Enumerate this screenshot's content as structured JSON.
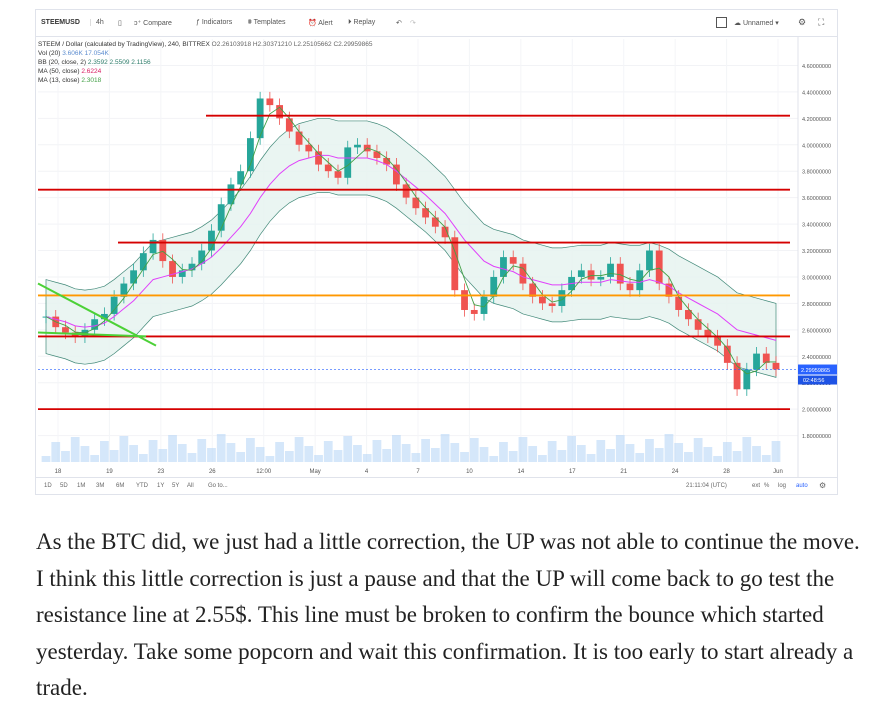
{
  "toolbar": {
    "symbol": "STEEMUSD",
    "interval": "4h",
    "compare": "Compare",
    "indicators": "Indicators",
    "templates": "Templates",
    "alert": "Alert",
    "replay": "Replay",
    "layout_name": "Unnamed"
  },
  "legend": {
    "main": "STEEM / Dollar (calculated by TradingView), 240, BITTREX",
    "ohlc": "O2.26103918  H2.30371210  L2.25105662  C2.29959865",
    "vol_label": "Vol (20)",
    "vol_values": "3.606K  17.054K",
    "bb_label": "BB (20, close, 2)",
    "bb_values": "2.3592  2.5509  2.1156",
    "ma50_label": "MA (50, close)",
    "ma50_value": "2.6224",
    "ma13_label": "MA (13, close)",
    "ma13_value": "2.3018"
  },
  "bottombar": {
    "ranges": [
      "1D",
      "5D",
      "1M",
      "3M",
      "6M",
      "YTD",
      "1Y",
      "5Y",
      "All",
      "Go to..."
    ],
    "time": "21:11:04 (UTC)",
    "pct": "%",
    "log": "log",
    "auto": "auto"
  },
  "colors": {
    "up": "#26a69a",
    "down": "#ef5350",
    "resistance": "#d50000",
    "pivot": "#ff9800",
    "trend": "#4cd137",
    "bb": "#2e7d6b",
    "ma50": "#e040fb",
    "ma13": "#43a047",
    "volume": "#b3d4f5"
  },
  "chart_data": {
    "type": "line",
    "title": "STEEM / Dollar (calculated by TradingView), 240, BITTREX",
    "ylim": [
      1.6,
      4.8
    ],
    "y_ticks": [
      "4.60000000",
      "4.40000000",
      "4.20000000",
      "4.00000000",
      "3.80000000",
      "3.60000000",
      "3.40000000",
      "3.20000000",
      "3.00000000",
      "2.80000000",
      "2.60000000",
      "2.40000000",
      "2.20000000",
      "2.00000000",
      "1.80000000"
    ],
    "x_ticks": [
      "18",
      "19",
      "23",
      "26",
      "12:00",
      "May",
      "4",
      "7",
      "10",
      "14",
      "17",
      "21",
      "24",
      "28",
      "Jun"
    ],
    "last_price": "2.29959865",
    "countdown": "02:48:56",
    "horizontal_levels": [
      {
        "value": 4.22,
        "color": "resistance"
      },
      {
        "value": 3.66,
        "color": "resistance"
      },
      {
        "value": 3.26,
        "color": "resistance"
      },
      {
        "value": 2.86,
        "color": "pivot"
      },
      {
        "value": 2.55,
        "color": "resistance"
      },
      {
        "value": 2.0,
        "color": "resistance"
      }
    ],
    "series": [
      {
        "values": [
          2.7,
          2.62,
          2.58,
          2.55,
          2.6,
          2.68,
          2.72,
          2.85,
          2.95,
          3.05,
          3.18,
          3.28,
          3.12,
          3.0,
          3.05,
          3.1,
          3.2,
          3.35,
          3.55,
          3.7,
          3.8,
          4.05,
          4.35,
          4.3,
          4.2,
          4.1,
          4.0,
          3.95,
          3.85,
          3.8,
          3.75,
          3.98,
          4.0,
          3.95,
          3.9,
          3.85,
          3.7,
          3.6,
          3.52,
          3.45,
          3.38,
          3.3,
          2.9,
          2.75,
          2.72,
          2.85,
          3.0,
          3.15,
          3.1,
          2.95,
          2.85,
          2.8,
          2.78,
          2.9,
          3.0,
          3.05,
          2.98,
          3.0,
          3.1,
          2.95,
          2.9,
          3.05,
          3.2,
          2.95,
          2.85,
          2.75,
          2.68,
          2.6,
          2.55,
          2.48,
          2.35,
          2.15,
          2.3,
          2.42,
          2.35,
          2.3
        ]
      },
      {
        "values": [
          2.7,
          2.68,
          2.66,
          2.63,
          2.62,
          2.63,
          2.65,
          2.7,
          2.76,
          2.82,
          2.9,
          2.98,
          3.0,
          3.02,
          3.04,
          3.06,
          3.1,
          3.15,
          3.22,
          3.3,
          3.38,
          3.48,
          3.6,
          3.7,
          3.78,
          3.84,
          3.88,
          3.9,
          3.92,
          3.92,
          3.9,
          3.9,
          3.9,
          3.9,
          3.88,
          3.85,
          3.8,
          3.74,
          3.68,
          3.62,
          3.55,
          3.48,
          3.38,
          3.28,
          3.2,
          3.12,
          3.08,
          3.06,
          3.04,
          3.0,
          2.98,
          2.96,
          2.94,
          2.94,
          2.95,
          2.96,
          2.96,
          2.96,
          2.98,
          2.97,
          2.96,
          2.96,
          2.98,
          2.96,
          2.93,
          2.88,
          2.84,
          2.8,
          2.76,
          2.72,
          2.66,
          2.6,
          2.58,
          2.56,
          2.54,
          2.52
        ]
      }
    ]
  },
  "article": {
    "paragraph": "As the BTC did, we just had a little correction, the UP was not able to continue the move. I think this little correction is just a pause and that the UP will come back to go test the resistance line at 2.55$. This line must be broken to confirm the bounce which started yesterday. Take some popcorn and wait this confirmation. It is too early to start already a trade."
  }
}
